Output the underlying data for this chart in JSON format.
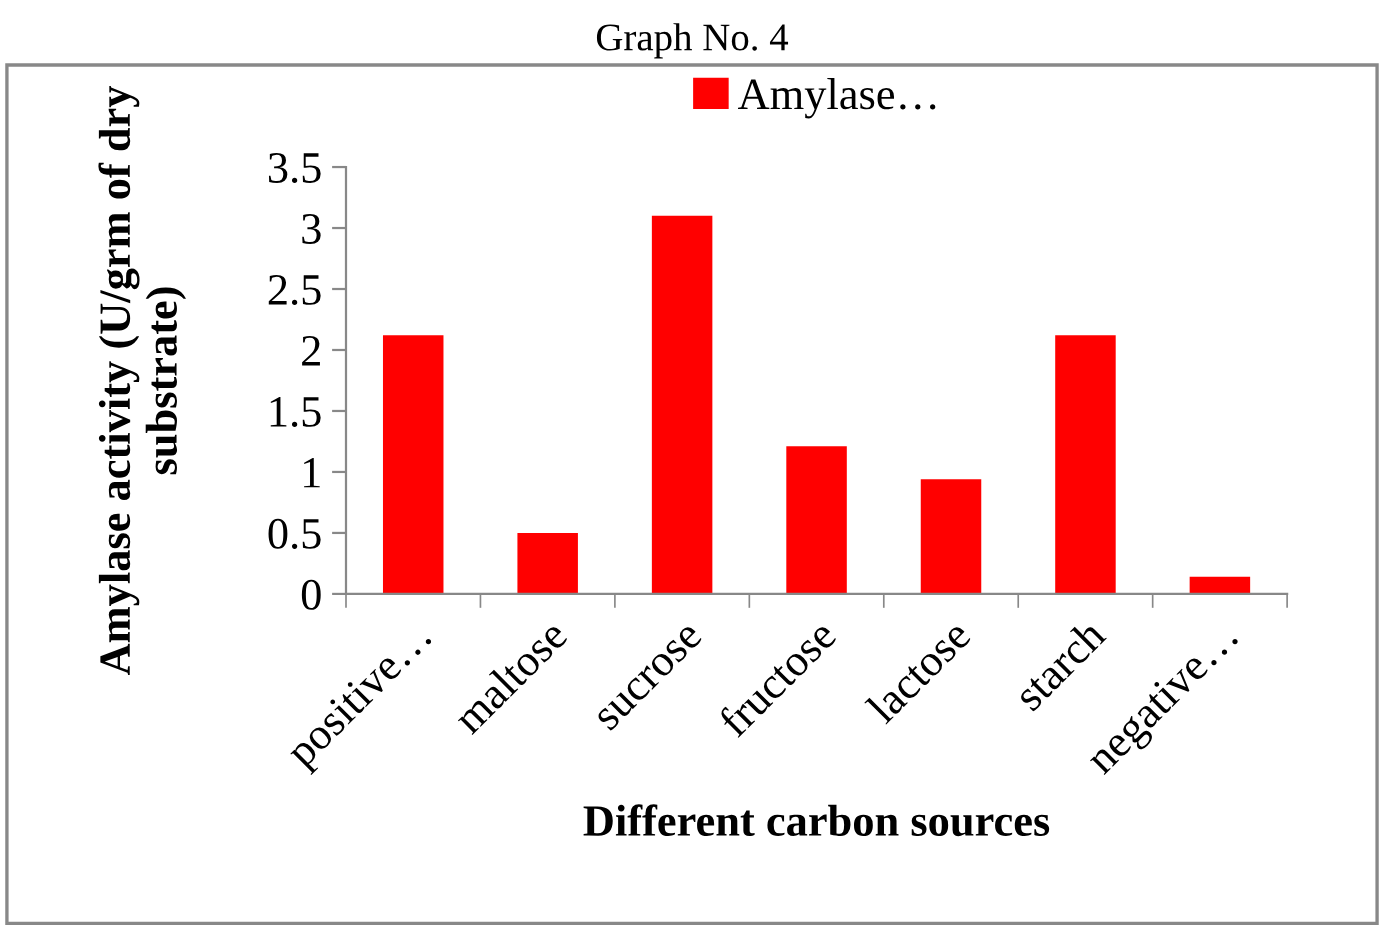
{
  "chart_data": {
    "type": "bar",
    "title": "Graph No. 4",
    "xlabel": "Different carbon sources",
    "ylabel": "Amylase activity (U/grm of dry substrate)",
    "categories": [
      "positive…",
      "maltose",
      "sucrose",
      "fructose",
      "lactose",
      "starch",
      "negative…"
    ],
    "series": [
      {
        "name": "Amylase…",
        "color": "#ff0000",
        "values": [
          2.12,
          0.5,
          3.1,
          1.21,
          0.94,
          2.12,
          0.14
        ]
      }
    ],
    "ylim": [
      0,
      3.5
    ],
    "yticks": [
      0,
      0.5,
      1,
      1.5,
      2,
      2.5,
      3,
      3.5
    ],
    "grid": false,
    "legend": "top"
  }
}
